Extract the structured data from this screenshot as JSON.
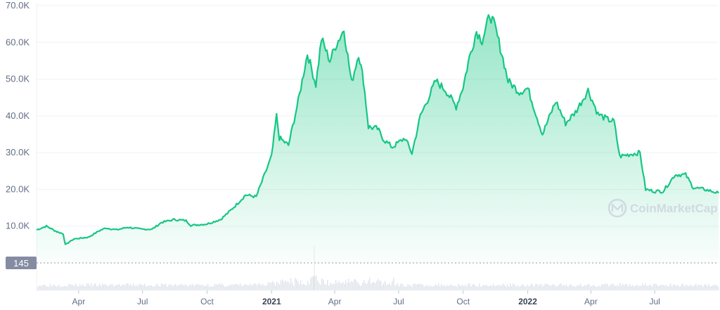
{
  "chart_data": {
    "type": "area",
    "xlabel": "",
    "ylabel": "",
    "ylim": [
      0,
      70000
    ],
    "xlim": [
      "2020-02-01",
      "2022-09-30"
    ],
    "yticks": [
      {
        "value": 10000,
        "label": "10.0K"
      },
      {
        "value": 20000,
        "label": "20.0K"
      },
      {
        "value": 30000,
        "label": "30.0K"
      },
      {
        "value": 40000,
        "label": "40.0K"
      },
      {
        "value": 50000,
        "label": "50.0K"
      },
      {
        "value": 60000,
        "label": "60.0K"
      },
      {
        "value": 70000,
        "label": "70.0K"
      }
    ],
    "xticks": [
      {
        "date": "2020-04-01",
        "label": "Apr",
        "year": false
      },
      {
        "date": "2020-07-01",
        "label": "Jul",
        "year": false
      },
      {
        "date": "2020-10-01",
        "label": "Oct",
        "year": false
      },
      {
        "date": "2021-01-01",
        "label": "2021",
        "year": true
      },
      {
        "date": "2021-04-01",
        "label": "Apr",
        "year": false
      },
      {
        "date": "2021-07-01",
        "label": "Jul",
        "year": false
      },
      {
        "date": "2021-10-01",
        "label": "Oct",
        "year": false
      },
      {
        "date": "2022-01-01",
        "label": "2022",
        "year": true
      },
      {
        "date": "2022-04-01",
        "label": "Apr",
        "year": false
      },
      {
        "date": "2022-07-01",
        "label": "Jul",
        "year": false
      }
    ],
    "grid": true,
    "line_color": "#16c784",
    "fill_color": "#16c784",
    "volume_label": "145",
    "watermark": "CoinMarketCap",
    "series": [
      {
        "x": [
          "2020-02-01",
          "2020-02-15",
          "2020-03-01",
          "2020-03-10",
          "2020-03-13",
          "2020-03-25",
          "2020-04-15",
          "2020-05-01",
          "2020-05-10",
          "2020-05-25",
          "2020-06-10",
          "2020-06-30",
          "2020-07-15",
          "2020-07-28",
          "2020-08-15",
          "2020-09-01",
          "2020-09-08",
          "2020-10-01",
          "2020-10-20",
          "2020-11-01",
          "2020-11-10",
          "2020-11-25",
          "2020-12-10",
          "2020-12-20",
          "2021-01-01",
          "2021-01-08",
          "2021-01-12",
          "2021-01-25",
          "2021-02-08",
          "2021-02-21",
          "2021-03-05",
          "2021-03-13",
          "2021-03-25",
          "2021-04-02",
          "2021-04-14",
          "2021-04-25",
          "2021-05-05",
          "2021-05-12",
          "2021-05-19",
          "2021-06-01",
          "2021-06-10",
          "2021-06-22",
          "2021-07-10",
          "2021-07-20",
          "2021-08-01",
          "2021-08-15",
          "2021-08-23",
          "2021-09-06",
          "2021-09-21",
          "2021-10-01",
          "2021-10-10",
          "2021-10-20",
          "2021-10-28",
          "2021-11-08",
          "2021-11-15",
          "2021-11-25",
          "2021-12-04",
          "2021-12-20",
          "2022-01-01",
          "2022-01-22",
          "2022-02-10",
          "2022-02-24",
          "2022-03-10",
          "2022-03-28",
          "2022-04-11",
          "2022-04-25",
          "2022-05-04",
          "2022-05-12",
          "2022-05-25",
          "2022-06-10",
          "2022-06-18",
          "2022-06-30",
          "2022-07-13",
          "2022-07-30",
          "2022-08-14",
          "2022-08-25",
          "2022-09-10",
          "2022-09-30"
        ],
        "y": [
          9000,
          10000,
          8500,
          7900,
          4950,
          6500,
          7000,
          8800,
          9500,
          9000,
          9700,
          9150,
          9200,
          11000,
          11800,
          11500,
          10200,
          10600,
          11800,
          13800,
          15500,
          18500,
          18000,
          23000,
          29000,
          40000,
          34000,
          32000,
          44000,
          57000,
          48500,
          61000,
          55000,
          59000,
          63500,
          49000,
          57000,
          49500,
          37000,
          36500,
          33500,
          31500,
          34000,
          29800,
          40000,
          46000,
          49500,
          47000,
          42500,
          48000,
          56000,
          63000,
          60500,
          67500,
          64500,
          57000,
          49500,
          46500,
          47500,
          35000,
          44000,
          38000,
          41000,
          47000,
          40500,
          39000,
          38500,
          29000,
          29500,
          30000,
          20000,
          19500,
          19500,
          24000,
          24000,
          20500,
          20000,
          19000
        ]
      }
    ]
  }
}
